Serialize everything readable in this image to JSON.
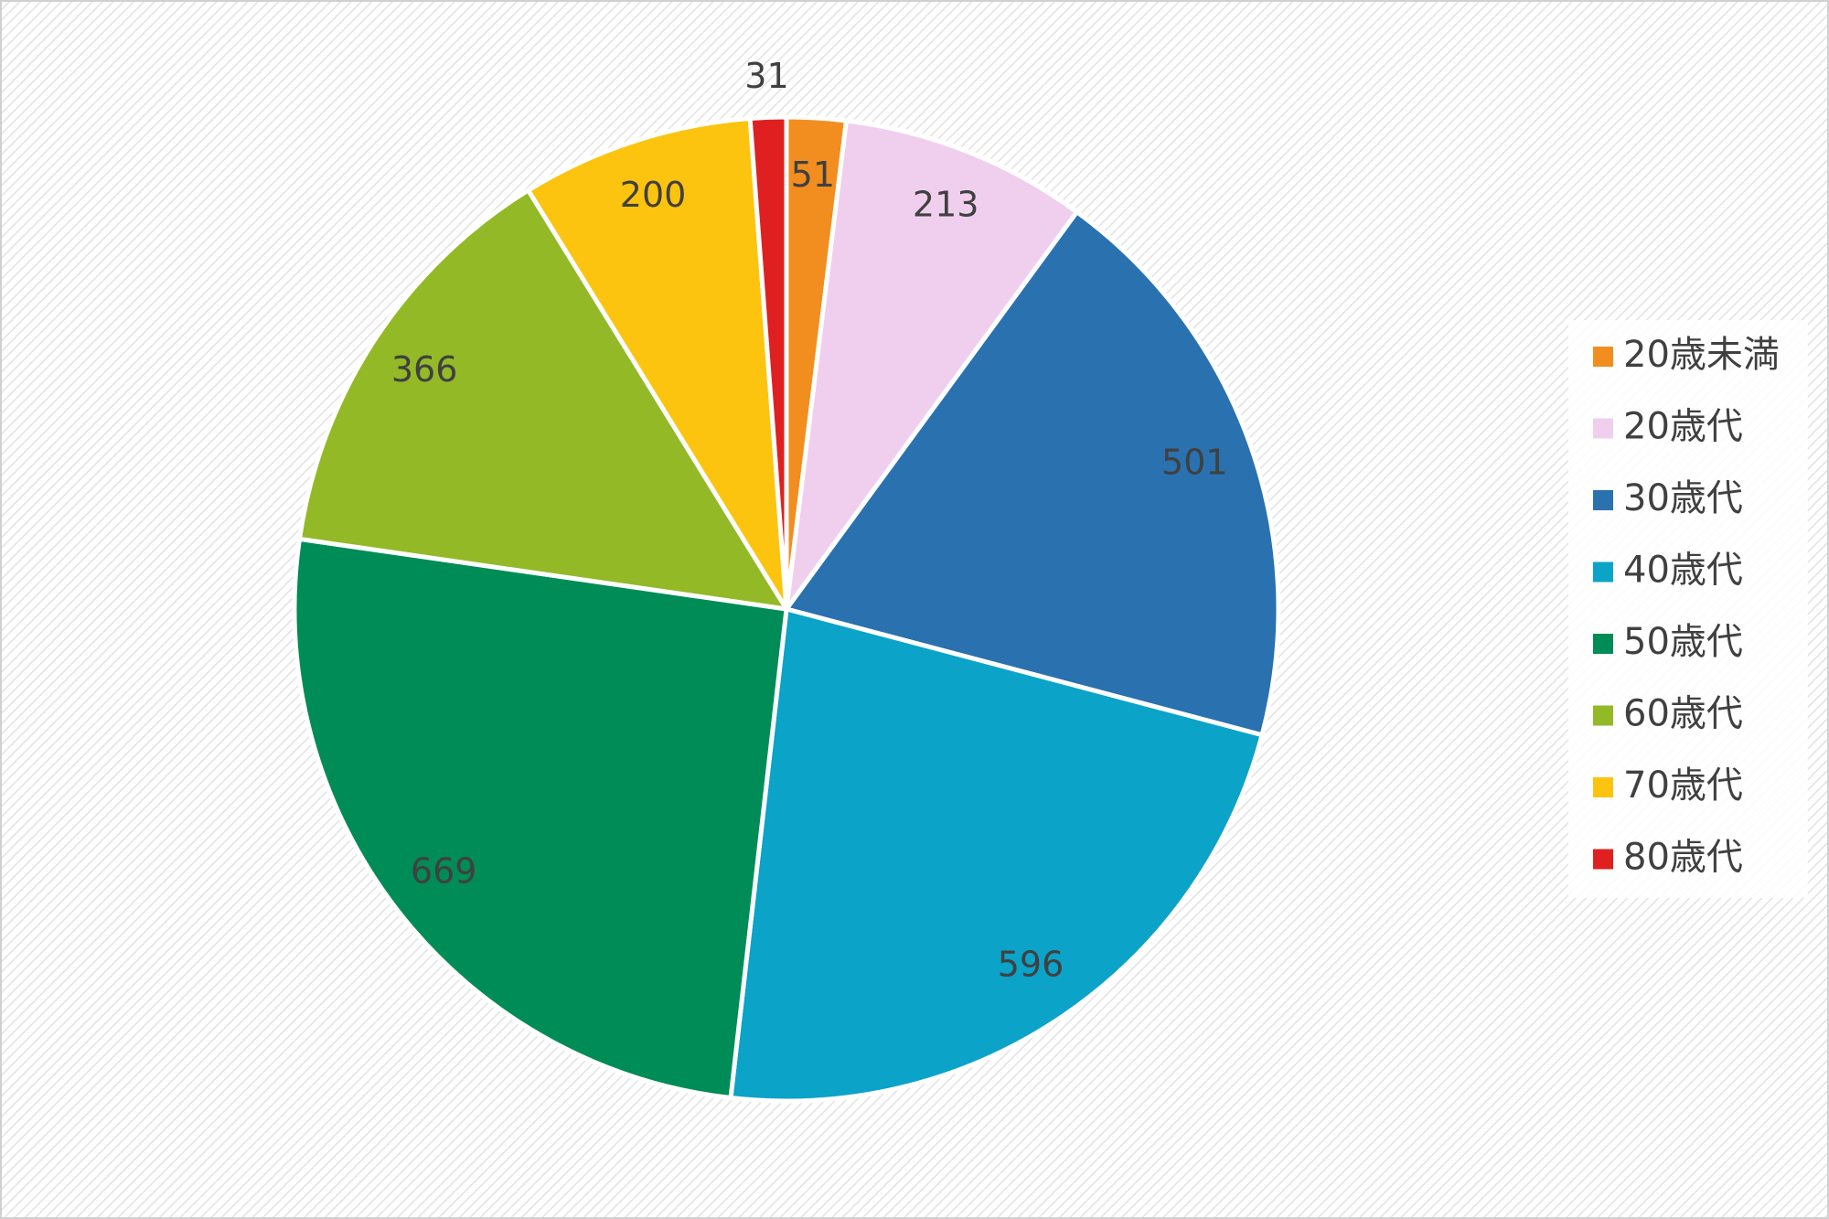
{
  "chart_data": {
    "type": "pie",
    "categories": [
      "20歳未満",
      "20歳代",
      "30歳代",
      "40歳代",
      "50歳代",
      "60歳代",
      "70歳代",
      "80歳代"
    ],
    "values": [
      51,
      213,
      501,
      596,
      669,
      366,
      200,
      31
    ],
    "colors": [
      "#f28e1f",
      "#f0cfee",
      "#2a71b0",
      "#0ba3c8",
      "#008c57",
      "#93b927",
      "#fcc40f",
      "#e02020"
    ],
    "legend": "right"
  }
}
